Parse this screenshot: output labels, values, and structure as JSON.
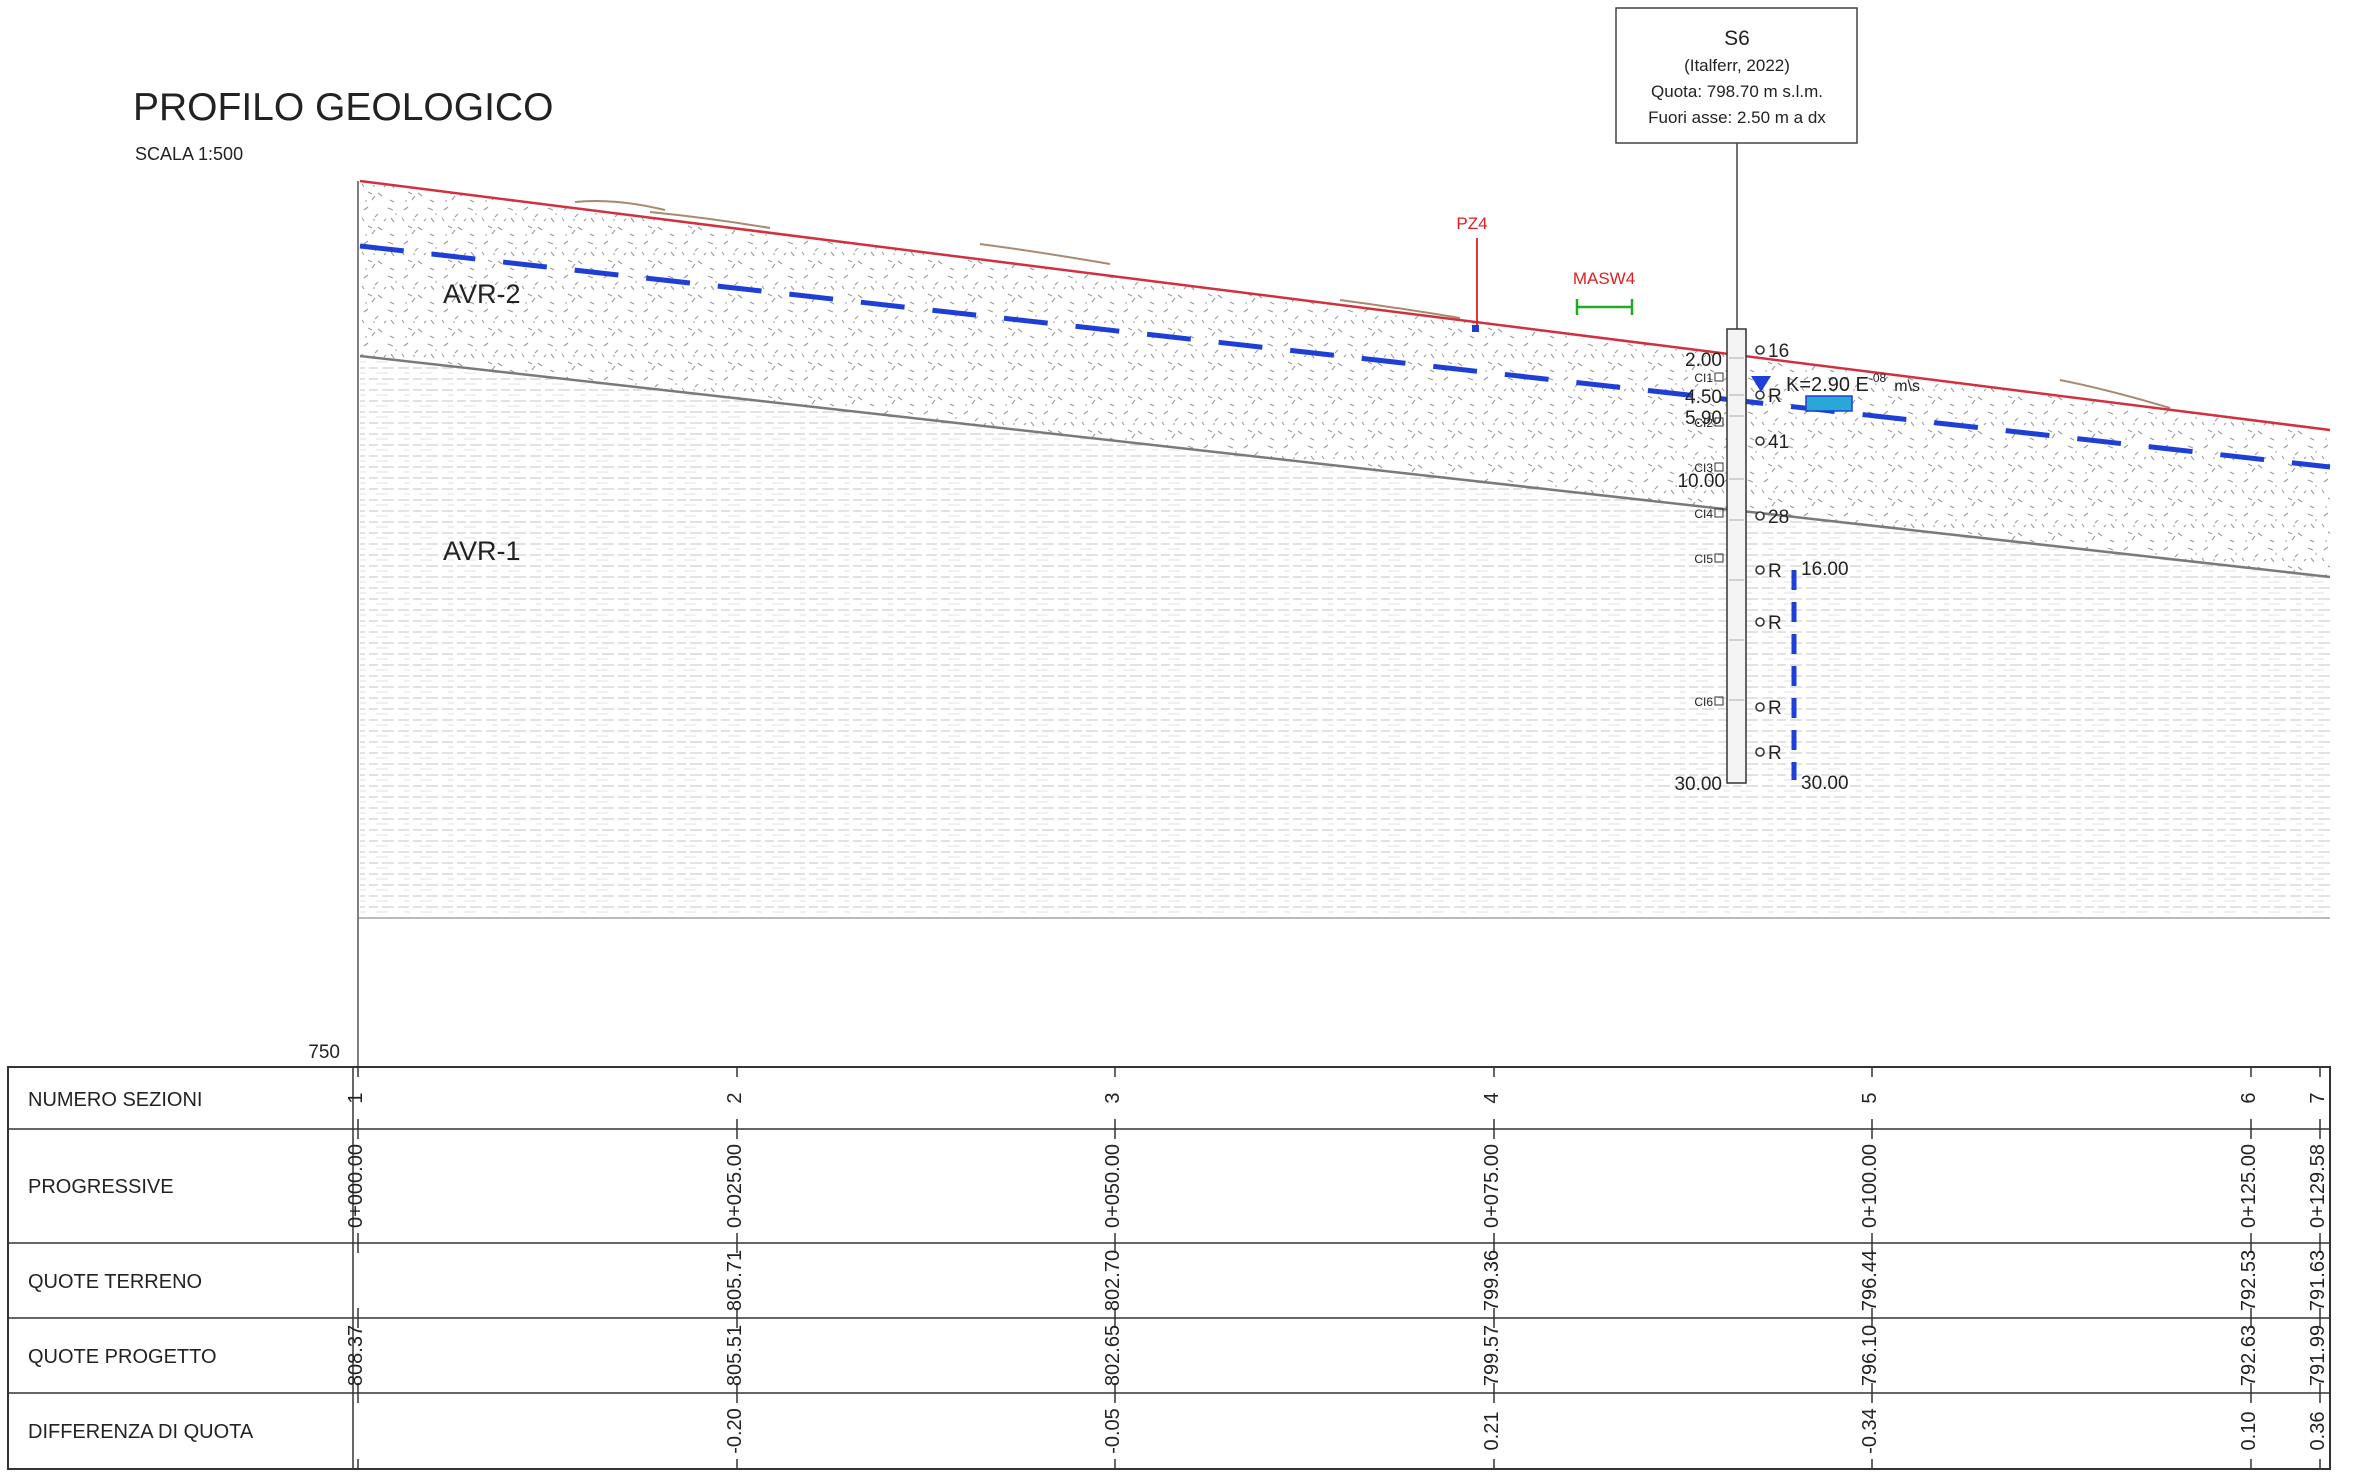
{
  "title": "PROFILO GEOLOGICO",
  "scale": "SCALA 1:500",
  "datum": "750",
  "borehole": {
    "name": "S6",
    "source": "(Italferr, 2022)",
    "quota": "Quota: 798.70 m s.l.m.",
    "offset": "Fuori asse: 2.50 m a dx",
    "depths": [
      "2.00",
      "4.50",
      "5.90",
      "10.00",
      "30.00"
    ],
    "samples": [
      "CI1",
      "CI2",
      "CI3",
      "CI4",
      "CI5",
      "CI6"
    ],
    "spt": [
      "16",
      "R",
      "41",
      "28",
      "R",
      "R",
      "R",
      "R"
    ],
    "permeability": {
      "base": "K=2.90 E",
      "exp": "-08",
      "unit": "m\\s"
    },
    "piezometer_top": "16.00",
    "piezometer_bottom": "30.00"
  },
  "markers": {
    "pz": "PZ4",
    "masw": "MASW4"
  },
  "units": {
    "upper": "AVR-2",
    "lower": "AVR-1"
  },
  "colors": {
    "ground": "#d2303f",
    "water": "#1e3fd6",
    "masw": "#22aa22",
    "contact": "#7a7a7a",
    "marker": "#e02020",
    "piezo_fill": "#29a8d8",
    "grid": "#333333"
  },
  "table": {
    "rows": [
      {
        "label": "NUMERO SEZIONI",
        "values": [
          "1",
          "2",
          "3",
          "4",
          "5",
          "6",
          "7"
        ]
      },
      {
        "label": "PROGRESSIVE",
        "values": [
          "0+000.00",
          "0+025.00",
          "0+050.00",
          "0+075.00",
          "0+100.00",
          "0+125.00",
          "0+129.58"
        ]
      },
      {
        "label": "QUOTE TERRENO",
        "values": [
          "",
          "805.71",
          "802.70",
          "799.36",
          "796.44",
          "792.53",
          "791.63"
        ]
      },
      {
        "label": "QUOTE PROGETTO",
        "values": [
          "808.37",
          "805.51",
          "802.65",
          "799.57",
          "796.10",
          "792.63",
          "791.99"
        ]
      },
      {
        "label": "DIFFERENZA DI QUOTA",
        "values": [
          "",
          "-0.20",
          "-0.05",
          "0.21",
          "-0.34",
          "0.10",
          "0.36"
        ]
      }
    ]
  }
}
